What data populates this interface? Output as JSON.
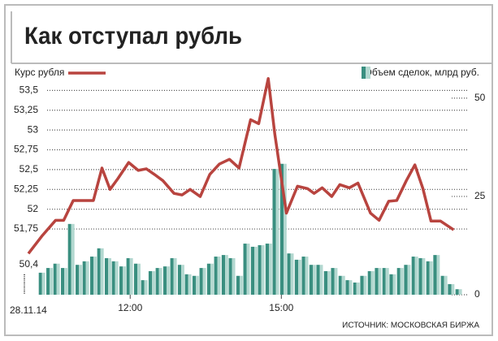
{
  "chart_data": {
    "type": "line-bar",
    "title": "Как отступал рубль",
    "annotations": [
      "50,4",
      "28.11.14"
    ],
    "source": "ИСТОЧНИК: МОСКОВСКАЯ БИРЖА",
    "legend": "top",
    "grid": true,
    "xlim": [
      9.9,
      18.8
    ],
    "xticks": [
      {
        "value": 12,
        "label": "12:00"
      },
      {
        "value": 15,
        "label": "15:00"
      }
    ],
    "ylim": [
      50.92,
      53.75
    ],
    "yticks": [
      {
        "value": 53.5,
        "label": "53,5"
      },
      {
        "value": 53.25,
        "label": "53,25"
      },
      53,
      {
        "value": 52.75,
        "label": "52,75"
      },
      {
        "value": 52.5,
        "label": "52,5"
      },
      {
        "value": 52.25,
        "label": "52,25"
      },
      52,
      {
        "value": 51.75,
        "label": "51,75"
      }
    ],
    "y2lim": [
      0,
      57
    ],
    "y2ticks": [
      50,
      25,
      0
    ],
    "series": [
      {
        "name": "Курс рубля",
        "type": "line",
        "color": "#b8443f",
        "x": [
          9.98,
          10.26,
          10.52,
          10.68,
          10.87,
          11.11,
          11.27,
          11.44,
          11.6,
          11.76,
          11.97,
          12.16,
          12.32,
          12.48,
          12.65,
          12.87,
          13.03,
          13.19,
          13.39,
          13.58,
          13.77,
          13.97,
          14.16,
          14.39,
          14.55,
          14.74,
          14.87,
          15.1,
          15.32,
          15.52,
          15.65,
          15.81,
          16.0,
          16.16,
          16.35,
          16.52,
          16.77,
          16.94,
          17.13,
          17.29,
          17.48,
          17.65,
          17.81,
          17.97,
          18.16,
          18.42
        ],
        "values": [
          51.44,
          51.67,
          51.86,
          51.86,
          52.11,
          52.11,
          52.11,
          52.52,
          52.25,
          52.39,
          52.59,
          52.49,
          52.51,
          52.44,
          52.36,
          52.2,
          52.18,
          52.25,
          52.16,
          52.44,
          52.57,
          52.63,
          52.52,
          53.13,
          53.08,
          53.65,
          52.95,
          51.95,
          52.29,
          52.26,
          52.2,
          52.27,
          52.16,
          52.31,
          52.27,
          52.33,
          51.95,
          51.86,
          52.1,
          52.11,
          52.36,
          52.56,
          52.26,
          51.85,
          51.85,
          51.74
        ]
      },
      {
        "name": "Объем сделок, млрд руб.",
        "type": "bar",
        "axis": "y2",
        "color": "#3a8f80",
        "color2": "#b3d8d0",
        "x": [
          10.25,
          10.4,
          10.54,
          10.69,
          10.83,
          10.98,
          11.12,
          11.27,
          11.41,
          11.56,
          11.7,
          11.85,
          11.99,
          12.14,
          12.28,
          12.43,
          12.57,
          12.72,
          12.86,
          13.01,
          13.15,
          13.3,
          13.44,
          13.59,
          13.73,
          13.88,
          14.02,
          14.17,
          14.31,
          14.46,
          14.6,
          14.75,
          14.89,
          15.04,
          15.18,
          15.33,
          15.47,
          15.62,
          15.76,
          15.91,
          16.05,
          16.2,
          16.34,
          16.49,
          16.63,
          16.78,
          16.92,
          17.07,
          17.21,
          17.36,
          17.5,
          17.65,
          17.79,
          17.94,
          18.08,
          18.23,
          18.37,
          18.52
        ],
        "values": [
          5.6,
          6.8,
          7.9,
          6.8,
          18.0,
          7.6,
          8.5,
          9.7,
          11.8,
          9.3,
          8.5,
          7.2,
          9.3,
          7.9,
          3.7,
          6.0,
          6.8,
          7.2,
          9.3,
          7.6,
          5.2,
          4.8,
          6.8,
          7.9,
          9.7,
          10.1,
          9.3,
          4.8,
          13.0,
          12.2,
          12.6,
          13.0,
          32.0,
          33.3,
          10.5,
          8.9,
          9.7,
          7.6,
          7.6,
          6.0,
          6.8,
          4.8,
          3.7,
          3.1,
          4.8,
          6.0,
          6.8,
          6.8,
          5.2,
          6.8,
          7.6,
          9.7,
          9.3,
          8.5,
          10.1,
          4.8,
          2.7,
          1.4
        ]
      }
    ]
  }
}
